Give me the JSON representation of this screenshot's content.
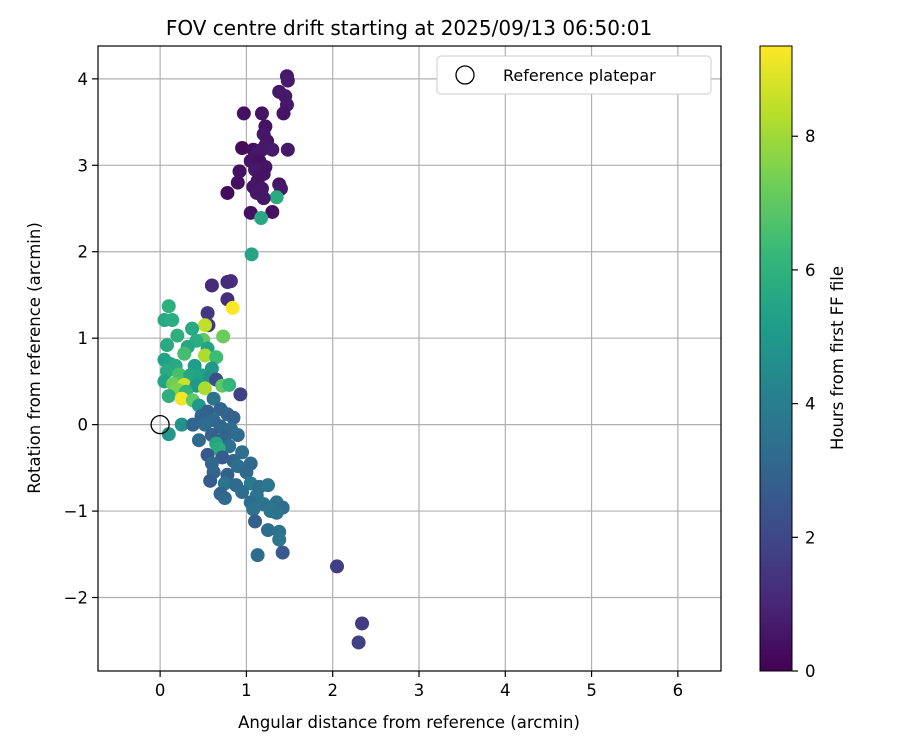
{
  "chart_data": {
    "type": "scatter",
    "title": "FOV centre drift starting at 2025/09/13 06:50:01",
    "xlabel": "Angular distance from reference (arcmin)",
    "ylabel": "Rotation from reference (arcmin)",
    "xlim": [
      -0.72,
      6.5
    ],
    "ylim": [
      -2.85,
      4.38
    ],
    "xticks": [
      0,
      1,
      2,
      3,
      4,
      5,
      6
    ],
    "yticks": [
      -2,
      -1,
      0,
      1,
      2,
      3,
      4
    ],
    "grid": true,
    "legend": {
      "placement": "top-right",
      "entries": [
        "Reference platepar"
      ]
    },
    "colorbar": {
      "label": "Hours from first FF file",
      "min": 0,
      "max": 9.35,
      "ticks": [
        0,
        2,
        4,
        6,
        8
      ],
      "colormap": "viridis"
    },
    "reference_point": {
      "x": 0,
      "y": 0,
      "name": "Reference platepar"
    },
    "colormap_stops": [
      "#440154",
      "#482878",
      "#3e4a89",
      "#31688e",
      "#26828e",
      "#1f9e89",
      "#35b779",
      "#6ece58",
      "#b5de2b",
      "#fde725"
    ],
    "points": [
      [
        1.47,
        4.03,
        0.6
      ],
      [
        1.48,
        3.98,
        0.7
      ],
      [
        1.38,
        3.85,
        0.6
      ],
      [
        1.45,
        3.8,
        0.6
      ],
      [
        1.47,
        3.7,
        0.6
      ],
      [
        0.97,
        3.6,
        0.4
      ],
      [
        1.18,
        3.6,
        0.5
      ],
      [
        1.43,
        3.6,
        0.5
      ],
      [
        1.22,
        3.45,
        0.5
      ],
      [
        1.2,
        3.36,
        0.6
      ],
      [
        1.24,
        3.28,
        0.5
      ],
      [
        1.22,
        3.23,
        0.6
      ],
      [
        0.95,
        3.2,
        0.3
      ],
      [
        1.08,
        3.18,
        0.4
      ],
      [
        1.18,
        3.18,
        0.6
      ],
      [
        1.3,
        3.18,
        0.7
      ],
      [
        1.48,
        3.18,
        0.6
      ],
      [
        1.12,
        3.13,
        0.6
      ],
      [
        1.05,
        3.05,
        0.5
      ],
      [
        1.15,
        3.05,
        0.4
      ],
      [
        1.22,
        2.98,
        0.5
      ],
      [
        1.1,
        2.95,
        0.6
      ],
      [
        0.92,
        2.93,
        0.4
      ],
      [
        1.2,
        2.9,
        0.5
      ],
      [
        1.13,
        2.82,
        0.5
      ],
      [
        0.9,
        2.8,
        0.4
      ],
      [
        1.08,
        2.75,
        0.5
      ],
      [
        1.38,
        2.78,
        0.5
      ],
      [
        1.18,
        2.73,
        0.6
      ],
      [
        1.4,
        2.73,
        0.6
      ],
      [
        0.78,
        2.68,
        0.3
      ],
      [
        1.12,
        2.68,
        0.6
      ],
      [
        1.35,
        2.63,
        5.7
      ],
      [
        1.2,
        2.62,
        0.6
      ],
      [
        1.05,
        2.45,
        0.4
      ],
      [
        1.3,
        2.46,
        0.4
      ],
      [
        1.17,
        2.39,
        5.6
      ],
      [
        1.06,
        1.97,
        5.5
      ],
      [
        0.6,
        1.61,
        1.1
      ],
      [
        0.82,
        1.66,
        1.3
      ],
      [
        0.78,
        1.65,
        1.2
      ],
      [
        0.78,
        1.45,
        1.2
      ],
      [
        0.84,
        1.35,
        9.3
      ],
      [
        0.55,
        1.29,
        1.5
      ],
      [
        0.56,
        1.15,
        1.5
      ],
      [
        0.52,
        1.15,
        8.5
      ],
      [
        0.73,
        1.02,
        7.2
      ],
      [
        0.1,
        1.37,
        5.9
      ],
      [
        0.05,
        1.21,
        5.6
      ],
      [
        0.14,
        1.21,
        5.8
      ],
      [
        0.37,
        1.11,
        5.6
      ],
      [
        0.2,
        1.03,
        5.9
      ],
      [
        0.5,
        0.98,
        7.0
      ],
      [
        0.42,
        0.97,
        5.8
      ],
      [
        0.08,
        0.92,
        5.7
      ],
      [
        0.32,
        0.9,
        5.5
      ],
      [
        0.55,
        0.88,
        5.4
      ],
      [
        0.28,
        0.82,
        6.5
      ],
      [
        0.52,
        0.8,
        8.2
      ],
      [
        0.65,
        0.78,
        6.4
      ],
      [
        0.05,
        0.75,
        5.3
      ],
      [
        0.12,
        0.7,
        5.4
      ],
      [
        0.18,
        0.68,
        5.6
      ],
      [
        0.4,
        0.68,
        5.2
      ],
      [
        0.6,
        0.65,
        5.0
      ],
      [
        0.08,
        0.62,
        5.7
      ],
      [
        0.22,
        0.58,
        6.6
      ],
      [
        0.35,
        0.57,
        5.5
      ],
      [
        0.48,
        0.57,
        5.3
      ],
      [
        0.58,
        0.55,
        4.8
      ],
      [
        0.65,
        0.52,
        2.2
      ],
      [
        0.05,
        0.5,
        5.4
      ],
      [
        0.15,
        0.47,
        7.3
      ],
      [
        0.28,
        0.46,
        8.6
      ],
      [
        0.42,
        0.45,
        5.0
      ],
      [
        0.72,
        0.45,
        7.0
      ],
      [
        0.8,
        0.46,
        6.2
      ],
      [
        0.2,
        0.4,
        7.5
      ],
      [
        0.3,
        0.38,
        6.1
      ],
      [
        0.52,
        0.42,
        8.2
      ],
      [
        0.93,
        0.35,
        1.8
      ],
      [
        0.1,
        0.33,
        5.9
      ],
      [
        0.25,
        0.3,
        9.2
      ],
      [
        0.38,
        0.28,
        7.0
      ],
      [
        0.62,
        0.3,
        3.5
      ],
      [
        0.45,
        0.22,
        5.0
      ],
      [
        0.7,
        0.18,
        3.0
      ],
      [
        0.55,
        0.15,
        2.8
      ],
      [
        0.78,
        0.12,
        3.0
      ],
      [
        0.48,
        0.1,
        3.0
      ],
      [
        0.85,
        0.08,
        2.9
      ],
      [
        0.62,
        0.05,
        3.2
      ],
      [
        0.25,
        0.0,
        4.8
      ],
      [
        0.38,
        0.0,
        3.0
      ],
      [
        0.52,
        0.0,
        3.3
      ],
      [
        0.7,
        -0.02,
        3.1
      ],
      [
        0.82,
        -0.05,
        3.2
      ],
      [
        0.1,
        -0.11,
        5.0
      ],
      [
        0.6,
        -0.12,
        2.9
      ],
      [
        0.75,
        -0.15,
        3.0
      ],
      [
        0.9,
        -0.12,
        3.3
      ],
      [
        0.45,
        -0.18,
        3.2
      ],
      [
        0.65,
        -0.22,
        5.5
      ],
      [
        0.8,
        -0.25,
        3.5
      ],
      [
        0.68,
        -0.28,
        5.8
      ],
      [
        0.95,
        -0.32,
        3.4
      ],
      [
        0.55,
        -0.35,
        2.6
      ],
      [
        0.72,
        -0.38,
        2.7
      ],
      [
        0.85,
        -0.42,
        3.0
      ],
      [
        0.6,
        -0.45,
        3.1
      ],
      [
        1.05,
        -0.45,
        3.2
      ],
      [
        0.9,
        -0.48,
        3.4
      ],
      [
        0.62,
        -0.55,
        3.0
      ],
      [
        0.78,
        -0.58,
        2.9
      ],
      [
        1.0,
        -0.55,
        3.1
      ],
      [
        0.58,
        -0.65,
        2.7
      ],
      [
        0.75,
        -0.68,
        3.6
      ],
      [
        0.88,
        -0.7,
        3.2
      ],
      [
        1.05,
        -0.68,
        3.8
      ],
      [
        1.15,
        -0.72,
        3.4
      ],
      [
        1.25,
        -0.7,
        3.7
      ],
      [
        0.7,
        -0.8,
        3.0
      ],
      [
        0.95,
        -0.78,
        3.3
      ],
      [
        1.12,
        -0.82,
        3.5
      ],
      [
        1.35,
        -0.9,
        3.6
      ],
      [
        0.75,
        -0.85,
        3.1
      ],
      [
        1.05,
        -0.9,
        3.3
      ],
      [
        1.2,
        -0.92,
        3.6
      ],
      [
        1.42,
        -0.96,
        3.4
      ],
      [
        1.08,
        -0.98,
        3.5
      ],
      [
        1.28,
        -1.0,
        3.7
      ],
      [
        1.35,
        -1.02,
        3.6
      ],
      [
        1.1,
        -1.12,
        2.8
      ],
      [
        1.25,
        -1.22,
        3.3
      ],
      [
        1.38,
        -1.24,
        3.5
      ],
      [
        1.38,
        -1.33,
        3.7
      ],
      [
        1.13,
        -1.51,
        3.3
      ],
      [
        1.42,
        -1.48,
        2.6
      ],
      [
        2.05,
        -1.64,
        1.7
      ],
      [
        2.34,
        -2.3,
        1.6
      ],
      [
        2.3,
        -2.52,
        1.8
      ]
    ]
  }
}
